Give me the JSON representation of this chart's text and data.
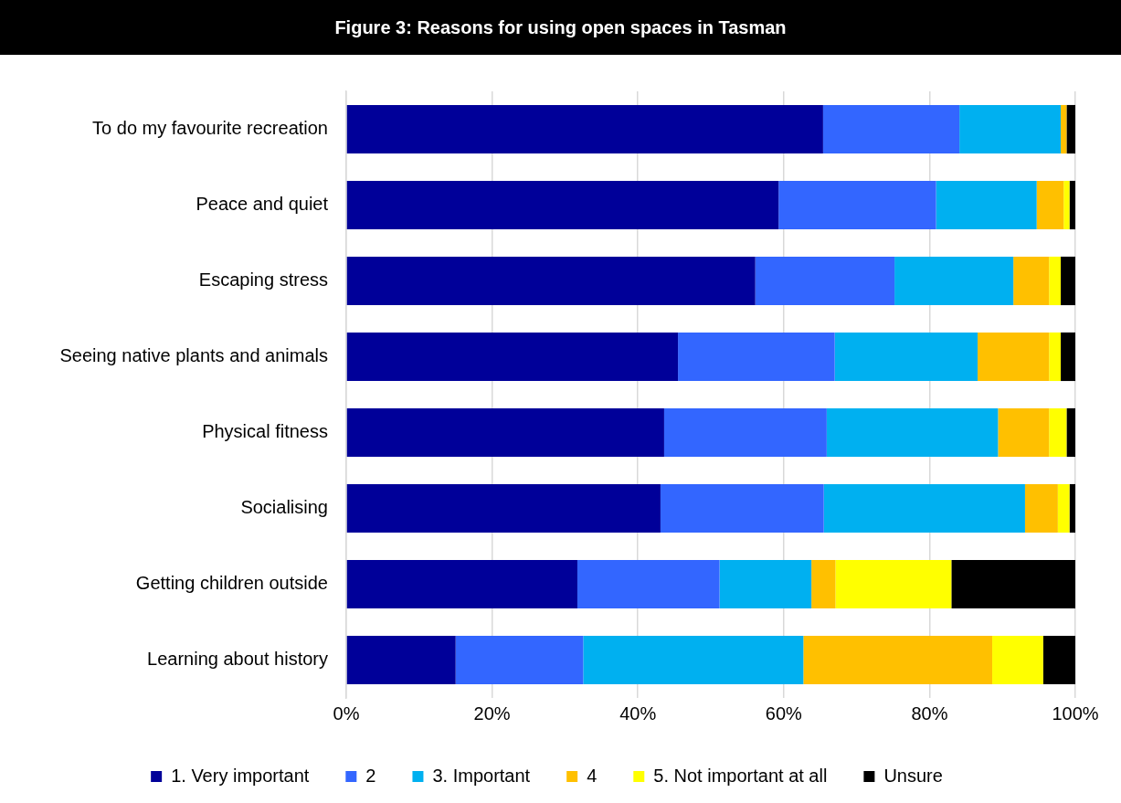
{
  "chart_data": {
    "type": "bar",
    "orientation": "horizontal",
    "stacked": true,
    "title": "Figure 3: Reasons for using open spaces in Tasman",
    "categories": [
      "To do my favourite recreation",
      "Peace and quiet",
      "Escaping stress",
      "Seeing native plants and animals",
      "Physical fitness",
      "Socialising",
      "Getting children outside",
      "Learning about history"
    ],
    "series": [
      {
        "name": "1. Very important",
        "color": "#000099",
        "values": [
          65.4,
          59.3,
          56.1,
          45.5,
          43.6,
          43.1,
          31.7,
          15.0
        ]
      },
      {
        "name": "2",
        "color": "#3366ff",
        "values": [
          18.7,
          21.6,
          19.1,
          21.5,
          22.3,
          22.4,
          19.5,
          17.5
        ]
      },
      {
        "name": "3. Important",
        "color": "#00b0f0",
        "values": [
          13.9,
          13.8,
          16.3,
          19.6,
          23.5,
          27.6,
          12.6,
          30.2
        ]
      },
      {
        "name": "4",
        "color": "#ffc000",
        "values": [
          0.8,
          3.7,
          4.9,
          9.8,
          7.0,
          4.5,
          3.3,
          25.9
        ]
      },
      {
        "name": "5. Not important at all",
        "color": "#ffff00",
        "values": [
          0,
          0.8,
          1.6,
          1.6,
          2.4,
          1.6,
          15.9,
          7.0
        ]
      },
      {
        "name": "Unsure",
        "color": "#000000",
        "values": [
          1.2,
          0.8,
          2.0,
          2.0,
          1.2,
          0.8,
          17.0,
          4.4
        ]
      }
    ],
    "xlim": [
      0,
      100
    ],
    "xticks": [
      {
        "value": 0,
        "label": "0%"
      },
      {
        "value": 20,
        "label": "20%"
      },
      {
        "value": 40,
        "label": "40%"
      },
      {
        "value": 60,
        "label": "60%"
      },
      {
        "value": 80,
        "label": "80%"
      },
      {
        "value": 100,
        "label": "100%"
      }
    ],
    "grid": "x",
    "legend": "bottom"
  }
}
